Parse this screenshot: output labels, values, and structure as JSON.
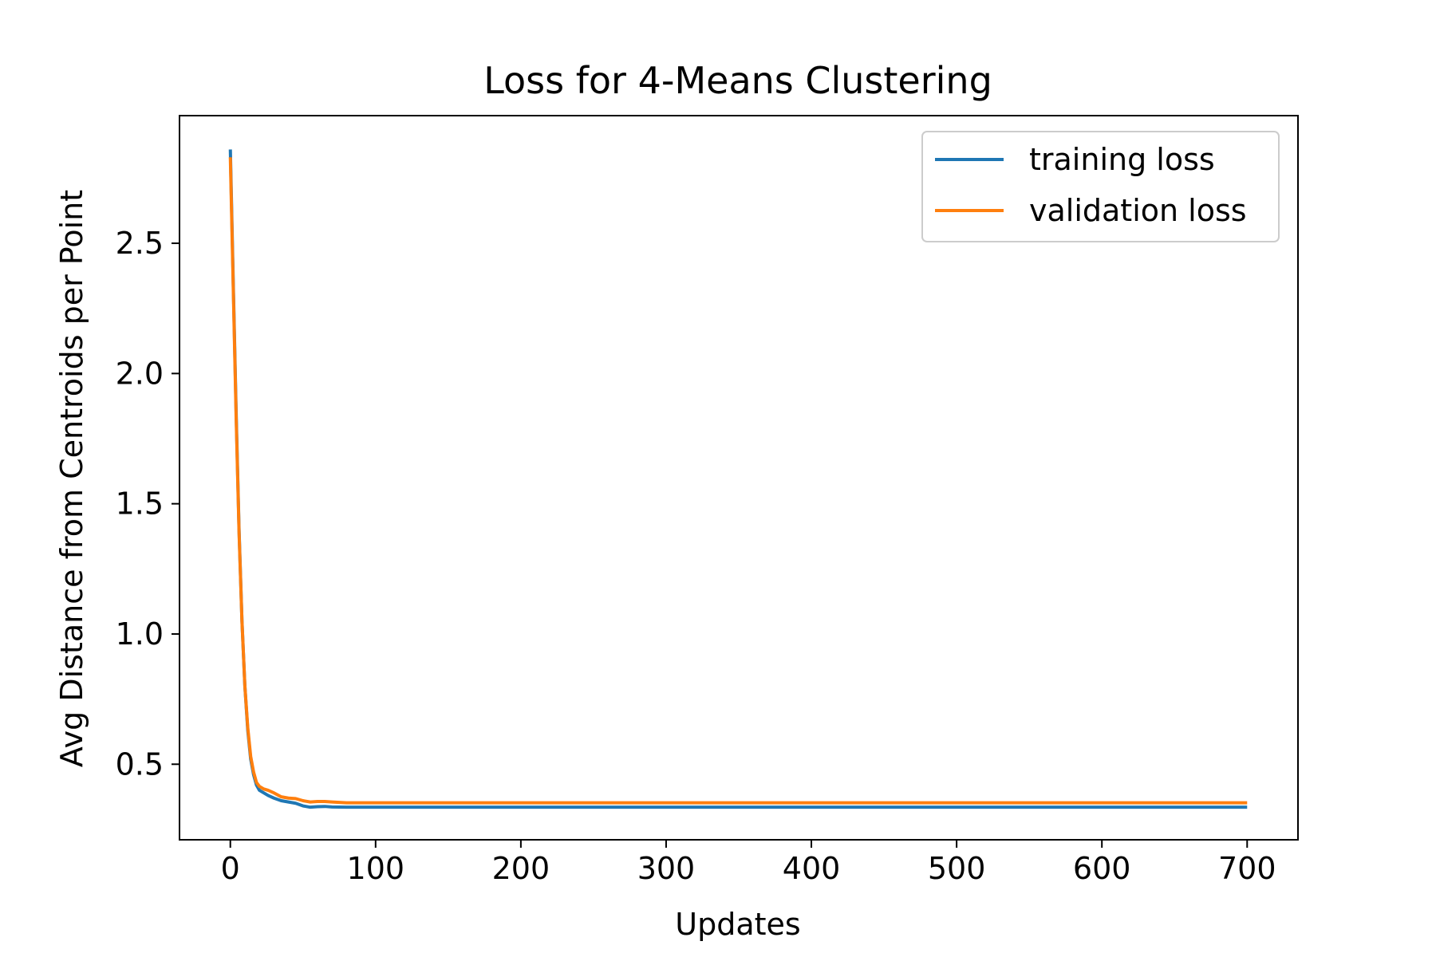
{
  "chart_data": {
    "type": "line",
    "title": "Loss for 4-Means Clustering",
    "xlabel": "Updates",
    "ylabel": "Avg Distance from Centroids per Point",
    "xlim": [
      -35,
      735
    ],
    "ylim": [
      0.21,
      2.99
    ],
    "xticks": [
      0,
      100,
      200,
      300,
      400,
      500,
      600,
      700
    ],
    "xtick_labels": [
      "0",
      "100",
      "200",
      "300",
      "400",
      "500",
      "600",
      "700"
    ],
    "yticks": [
      0.5,
      1.0,
      1.5,
      2.0,
      2.5
    ],
    "ytick_labels": [
      "0.5",
      "1.0",
      "1.5",
      "2.0",
      "2.5"
    ],
    "grid": false,
    "legend_position": "top-right",
    "series": [
      {
        "name": "training loss",
        "color": "#1f77b4",
        "x": [
          0,
          2,
          4,
          6,
          8,
          10,
          12,
          14,
          16,
          18,
          20,
          23,
          26,
          30,
          35,
          40,
          45,
          50,
          55,
          60,
          65,
          70,
          80,
          100,
          150,
          200,
          300,
          400,
          500,
          600,
          700
        ],
        "y": [
          2.86,
          2.35,
          1.85,
          1.4,
          1.05,
          0.8,
          0.63,
          0.52,
          0.46,
          0.42,
          0.4,
          0.39,
          0.38,
          0.37,
          0.36,
          0.355,
          0.35,
          0.34,
          0.335,
          0.337,
          0.338,
          0.336,
          0.335,
          0.335,
          0.335,
          0.335,
          0.335,
          0.335,
          0.335,
          0.335,
          0.335
        ]
      },
      {
        "name": "validation loss",
        "color": "#ff7f0e",
        "x": [
          0,
          2,
          4,
          6,
          8,
          10,
          12,
          14,
          16,
          18,
          20,
          23,
          26,
          30,
          35,
          40,
          45,
          50,
          55,
          60,
          65,
          70,
          80,
          100,
          150,
          200,
          300,
          400,
          500,
          600,
          700
        ],
        "y": [
          2.83,
          2.33,
          1.83,
          1.39,
          1.05,
          0.8,
          0.64,
          0.53,
          0.47,
          0.43,
          0.415,
          0.405,
          0.4,
          0.39,
          0.375,
          0.37,
          0.368,
          0.36,
          0.355,
          0.357,
          0.357,
          0.355,
          0.352,
          0.352,
          0.352,
          0.352,
          0.352,
          0.352,
          0.352,
          0.352,
          0.352
        ]
      }
    ]
  }
}
